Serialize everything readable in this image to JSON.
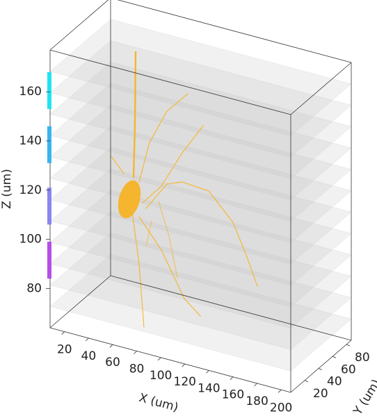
{
  "chart_data": {
    "type": "scatter3d",
    "xlabel": "X (um)",
    "ylabel": "Y (um)",
    "zlabel": "Z (um)",
    "xlim": [
      8,
      208
    ],
    "ylim": [
      0,
      87
    ],
    "zlim": [
      64,
      177
    ],
    "xticks": [
      20,
      40,
      60,
      80,
      100,
      120,
      140,
      160,
      180,
      200
    ],
    "yticks": [
      20,
      40,
      60,
      80
    ],
    "zticks": [
      80,
      100,
      120,
      140,
      160
    ],
    "z_bands": [
      {
        "color": "#22e3f0",
        "range": [
          153,
          168
        ]
      },
      {
        "color": "#3ab4ee",
        "range": [
          131,
          146
        ]
      },
      {
        "color": "#8a86f0",
        "range": [
          106,
          121
        ]
      },
      {
        "color": "#b44ee6",
        "range": [
          84,
          99
        ]
      }
    ],
    "neuron_color": "#f5b52e"
  }
}
